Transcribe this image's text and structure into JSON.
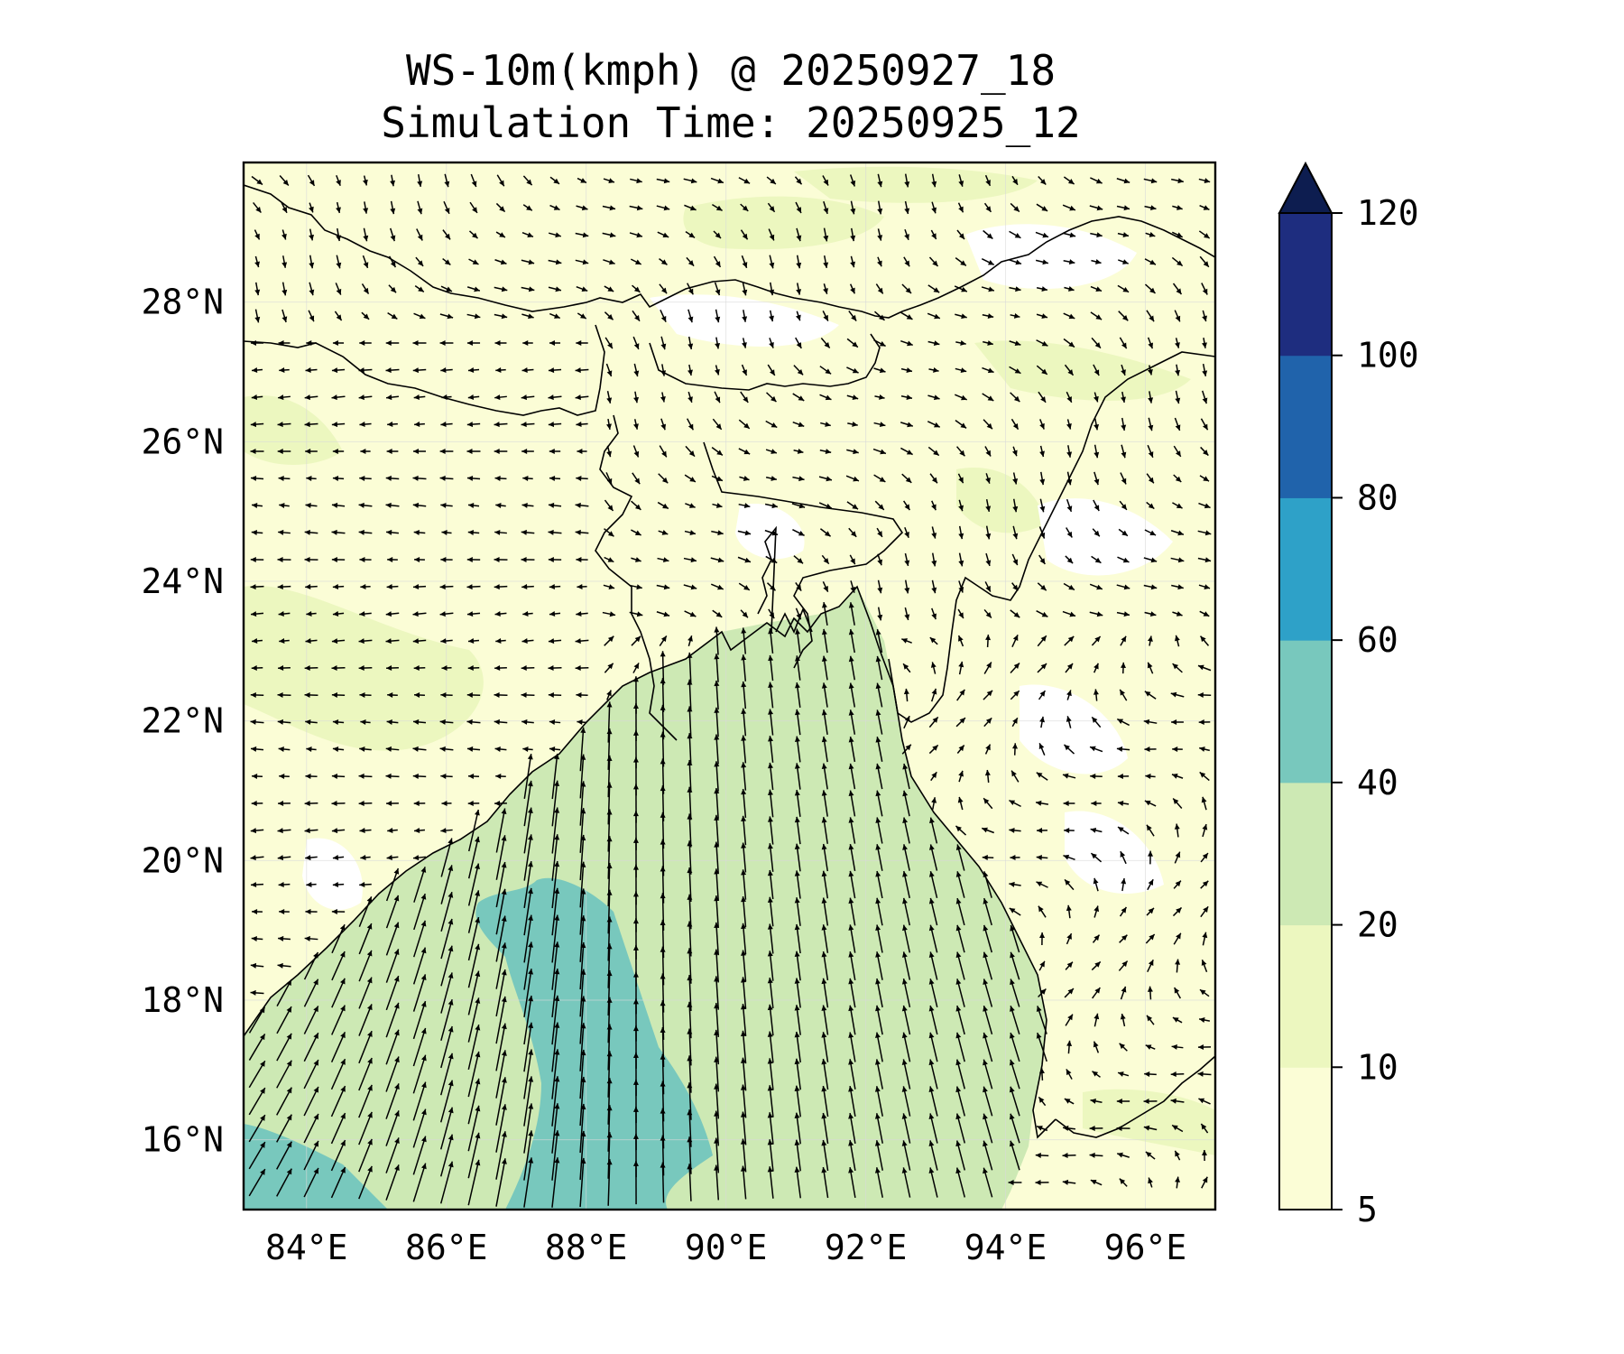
{
  "title": {
    "line1": "WS-10m(kmph) @ 20250927_18",
    "line2": "Simulation Time: 20250925_12"
  },
  "map": {
    "lon_range": [
      83.1,
      97.0
    ],
    "lat_range": [
      15.0,
      30.0
    ],
    "lon_ticks": [
      "84°E",
      "86°E",
      "88°E",
      "90°E",
      "92°E",
      "94°E",
      "96°E"
    ],
    "lon_tick_values": [
      84,
      86,
      88,
      90,
      92,
      94,
      96
    ],
    "lat_ticks": [
      "16°N",
      "18°N",
      "20°N",
      "22°N",
      "24°N",
      "26°N",
      "28°N"
    ],
    "lat_tick_values": [
      16,
      18,
      20,
      22,
      24,
      26,
      28
    ],
    "gridlines": true,
    "features": [
      "coastline",
      "country-borders",
      "wind-vectors",
      "filled-contours"
    ]
  },
  "colorbar": {
    "levels": [
      "5",
      "10",
      "20",
      "40",
      "60",
      "80",
      "100",
      "120"
    ],
    "colors": [
      "#fbfdd6",
      "#ecf7bf",
      "#cde9b4",
      "#78c8bd",
      "#2ea1c8",
      "#2063ab",
      "#1e2d7f"
    ],
    "extend_color": "#0d1d50",
    "extend": "max"
  },
  "field_colors": {
    "land_low": "#fbfdd6",
    "land_mid": "#ecf7bf",
    "sea": "#cde9b4",
    "jet": "#78c8bd",
    "calm": "#ffffff"
  }
}
